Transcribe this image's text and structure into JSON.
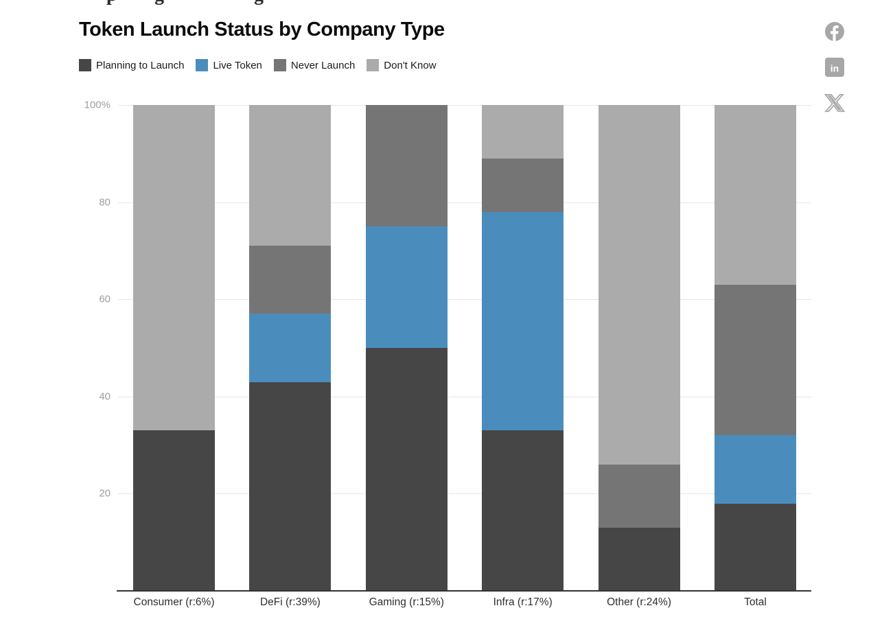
{
  "cropped_heading": {
    "fragments": [
      "p",
      "g",
      "g"
    ]
  },
  "title": "Token Launch Status by Company Type",
  "social": {
    "facebook_glyph": "f",
    "linkedin_glyph": "in",
    "icon_color": "#a7a7a7"
  },
  "chart_data": {
    "type": "bar",
    "stacked": true,
    "stack_unit": "percent",
    "title": "Token Launch Status by Company Type",
    "categories": [
      "Consumer (r:6%)",
      "DeFi (r:39%)",
      "Gaming (r:15%)",
      "Infra (r:17%)",
      "Other (r:24%)",
      "Total"
    ],
    "series": [
      {
        "name": "Planning to Launch",
        "color": "#464646",
        "values": [
          33,
          43,
          50,
          33,
          13,
          18
        ]
      },
      {
        "name": "Live Token",
        "color": "#4a8dbd",
        "values": [
          0,
          14,
          25,
          45,
          0,
          14
        ]
      },
      {
        "name": "Never Launch",
        "color": "#757575",
        "values": [
          0,
          14,
          25,
          11,
          13,
          31
        ]
      },
      {
        "name": "Don't Know",
        "color": "#ababab",
        "values": [
          67,
          29,
          0,
          11,
          74,
          37
        ]
      }
    ],
    "ylim": [
      0,
      100
    ],
    "ytick_values": [
      100,
      80,
      60,
      40,
      20
    ],
    "ytick_labels": [
      "100%",
      "80",
      "60",
      "40",
      "20"
    ],
    "xlabel": "",
    "ylabel": "",
    "grid": "horizontal",
    "legend_position": "top",
    "gridline_color": "#e6e6e6",
    "axis_line_color": "#333333",
    "ytick_color": "#9e9e9e",
    "xtick_color": "#2e2e2e"
  }
}
